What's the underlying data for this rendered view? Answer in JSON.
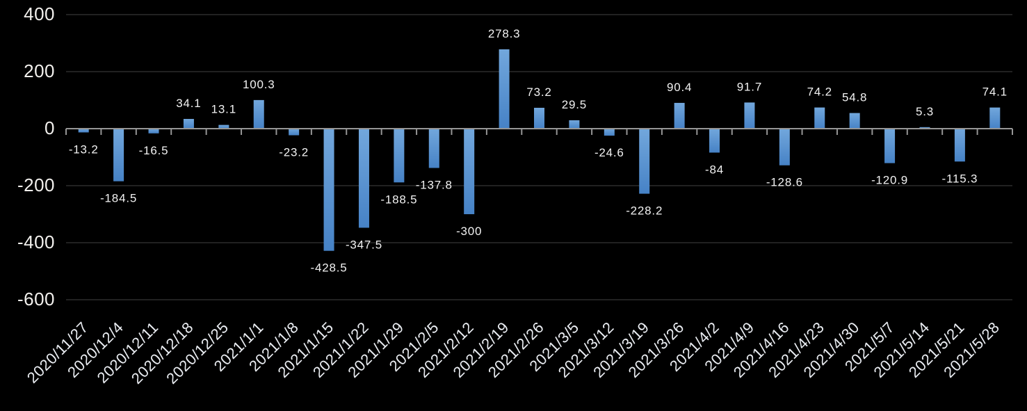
{
  "chart_data": {
    "type": "bar",
    "title": "",
    "legend": "none",
    "grid": "horizontal",
    "background": "#000000",
    "bar_color_top": "#72A7DC",
    "bar_color_bottom": "#4682C6",
    "gridline_color": "#212121",
    "axis_color": "#969696",
    "text_color": "#F2F2F2",
    "ylim": [
      -600,
      400
    ],
    "yticks": [
      400,
      200,
      0,
      -200,
      -400,
      -600
    ],
    "ytick_labels": [
      "400",
      "200",
      "0",
      "-200",
      "-400",
      "-600"
    ],
    "categories": [
      "2020/11/27",
      "2020/12/4",
      "2020/12/11",
      "2020/12/18",
      "2020/12/25",
      "2021/1/1",
      "2021/1/8",
      "2021/1/15",
      "2021/1/22",
      "2021/1/29",
      "2021/2/5",
      "2021/2/12",
      "2021/2/19",
      "2021/2/26",
      "2021/3/5",
      "2021/3/12",
      "2021/3/19",
      "2021/3/26",
      "2021/4/2",
      "2021/4/9",
      "2021/4/16",
      "2021/4/23",
      "2021/4/30",
      "2021/5/7",
      "2021/5/14",
      "2021/5/21",
      "2021/5/28"
    ],
    "values": [
      -13.2,
      -184.5,
      -16.5,
      34.1,
      13.1,
      100.3,
      -23.2,
      -428.5,
      -347.5,
      -188.5,
      -137.8,
      -300,
      278.3,
      73.2,
      29.5,
      -24.6,
      -228.2,
      90.4,
      -84,
      91.7,
      -128.6,
      74.2,
      54.8,
      -120.9,
      5.3,
      -115.3,
      74.1
    ],
    "data_labels": [
      "-13.2",
      "-184.5",
      "-16.5",
      "34.1",
      "13.1",
      "100.3",
      "-23.2",
      "-428.5",
      "-347.5",
      "-188.5",
      "-137.8",
      "-300",
      "278.3",
      "73.2",
      "29.5",
      "-24.6",
      "-228.2",
      "90.4",
      "-84",
      "91.7",
      "-128.6",
      "74.2",
      "54.8",
      "-120.9",
      "5.3",
      "-115.3",
      "74.1"
    ],
    "xlabel": "",
    "ylabel": ""
  }
}
